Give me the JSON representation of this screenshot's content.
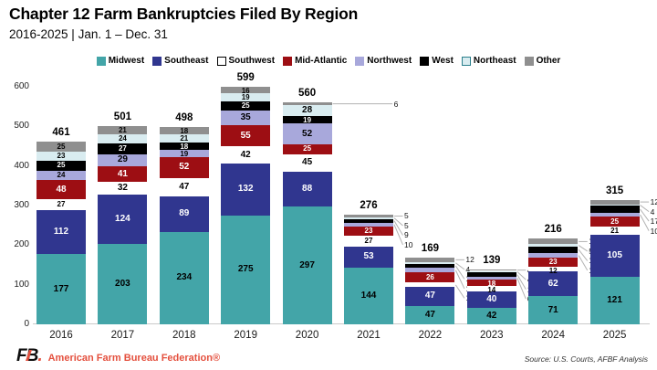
{
  "header": {
    "title": "Chapter 12 Farm Bankruptcies Filed By Region",
    "subtitle": "2016-2025 | Jan. 1 – Dec. 31"
  },
  "chart_data": {
    "type": "bar",
    "stacked": true,
    "title": "Chapter 12 Farm Bankruptcies Filed By Region",
    "categories": [
      "2016",
      "2017",
      "2018",
      "2019",
      "2020",
      "2021",
      "2022",
      "2023",
      "2024",
      "2025"
    ],
    "totals": [
      461,
      501,
      498,
      599,
      560,
      276,
      169,
      139,
      216,
      315
    ],
    "series": [
      {
        "name": "Midwest",
        "color": "#43A5A8",
        "label_color": "#000000",
        "values": [
          177,
          203,
          234,
          275,
          297,
          144,
          47,
          42,
          71,
          121
        ]
      },
      {
        "name": "Southeast",
        "color": "#30368F",
        "label_color": "#FFFFFF",
        "values": [
          112,
          124,
          89,
          132,
          88,
          53,
          47,
          40,
          62,
          105
        ]
      },
      {
        "name": "Southwest",
        "color": "#FFFFFF",
        "label_color": "#000000",
        "swatch_border": "#000000",
        "values": [
          27,
          32,
          47,
          42,
          45,
          27,
          11,
          14,
          12,
          21
        ]
      },
      {
        "name": "Mid-Atlantic",
        "color": "#9D0E13",
        "label_color": "#FFFFFF",
        "values": [
          48,
          41,
          52,
          55,
          25,
          23,
          26,
          18,
          23,
          25
        ]
      },
      {
        "name": "Northwest",
        "color": "#A8A8DB",
        "label_color": "#000000",
        "values": [
          24,
          29,
          19,
          35,
          52,
          10,
          11,
          6,
          12,
          10
        ]
      },
      {
        "name": "West",
        "color": "#000000",
        "label_color": "#FFFFFF",
        "values": [
          25,
          27,
          18,
          25,
          19,
          9,
          11,
          11,
          17,
          17
        ]
      },
      {
        "name": "Northeast",
        "color": "#D9ECF0",
        "label_color": "#000000",
        "swatch_border": "#2A7F8C",
        "values": [
          23,
          24,
          21,
          19,
          28,
          5,
          4,
          4,
          5,
          4
        ]
      },
      {
        "name": "Other",
        "color": "#8F8F8F",
        "label_color": "#000000",
        "values": [
          25,
          21,
          18,
          16,
          6,
          5,
          12,
          4,
          14,
          12
        ]
      }
    ],
    "ylim": [
      0,
      600
    ],
    "yticks": [
      0,
      100,
      200,
      300,
      400,
      500,
      600
    ],
    "grid": false,
    "legend_position": "top",
    "outside_labels": {
      "2020": [
        "Other"
      ],
      "2021": [
        "Northwest",
        "West",
        "Northeast",
        "Other"
      ],
      "2022": [
        "Southwest",
        "Northwest",
        "West",
        "Northeast",
        "Other"
      ],
      "2023": [
        "Northwest",
        "West",
        "Northeast",
        "Other"
      ],
      "2024": [
        "Northwest",
        "West",
        "Northeast",
        "Other"
      ],
      "2025": [
        "Northwest",
        "West",
        "Northeast",
        "Other"
      ]
    },
    "outside_x_offset": {
      "default": 12,
      "2020": 68
    }
  },
  "footer": {
    "logo_text": "FB",
    "logo_dot": ".",
    "org": "American Farm Bureau Federation®",
    "source": "Source: U.S. Courts, AFBF Analysis",
    "brand_color": "#E4503E"
  }
}
